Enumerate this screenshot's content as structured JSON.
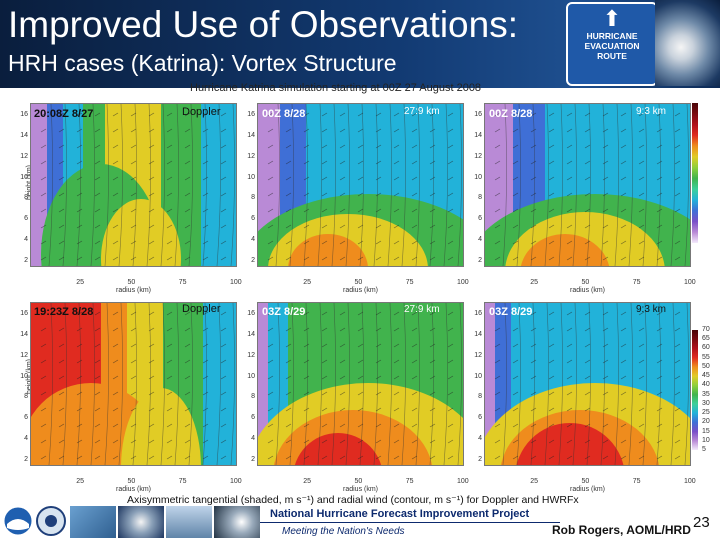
{
  "slide": {
    "title": "Improved Use of Observations:",
    "subtitle": "HRH cases (Katrina): Vortex Structure",
    "figure_title": "Hurricane Katrina simulation starting at 00Z 27 August 2008",
    "sign_text": [
      "HURRICANE",
      "EVACUATION",
      "ROUTE"
    ],
    "caption": "Axisymmetric tangential (shaded, m s⁻¹) and radial wind (contour, m s⁻¹) for Doppler and HWRFx",
    "program": "National Hurricane Forecast Improvement Project",
    "motto": "Meeting the Nation's Needs",
    "author": "Rob Rogers, AOML/HRD",
    "page_number": "23"
  },
  "axes": {
    "ylabel": "height (km)",
    "xlabel": "radius (km)",
    "yticks": [
      "2",
      "4",
      "6",
      "8",
      "10",
      "12",
      "14",
      "16"
    ],
    "xticks": [
      "25",
      "50",
      "75",
      "100"
    ],
    "colorbar_ticks": [
      "5",
      "10",
      "15",
      "20",
      "25",
      "30",
      "35",
      "40",
      "45",
      "50",
      "55",
      "60",
      "65",
      "70"
    ]
  },
  "panels": [
    {
      "time_label": "20:08Z 8/27",
      "source": "Doppler",
      "resolution": "",
      "style": "doppler_top"
    },
    {
      "time_label": "00Z 8/28",
      "source": "",
      "resolution": "27:9 km",
      "style": "model_top_a"
    },
    {
      "time_label": "00Z 8/28",
      "source": "",
      "resolution": "9:3 km",
      "style": "model_top_b"
    },
    {
      "time_label": "19:23Z 8/28",
      "source": "Doppler",
      "resolution": "",
      "style": "doppler_bottom"
    },
    {
      "time_label": "03Z 8/29",
      "source": "",
      "resolution": "27:9 km",
      "style": "model_bottom_a"
    },
    {
      "time_label": "03Z 8/29",
      "source": "",
      "resolution": "9:3 km",
      "style": "model_bottom_b"
    }
  ],
  "colors": {
    "header_bg": "#123a72",
    "purple": "#b98ad6",
    "blue": "#3f6fd6",
    "cyan": "#22b2d9",
    "green": "#41b34d",
    "yellow": "#e1cc25",
    "orange": "#ef8c1d",
    "red": "#e02b20"
  }
}
